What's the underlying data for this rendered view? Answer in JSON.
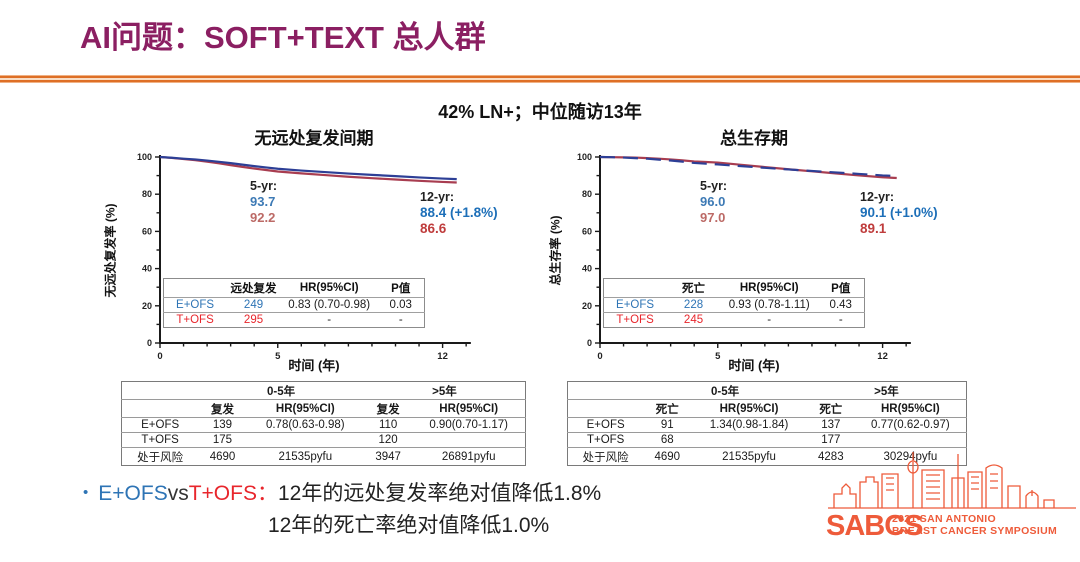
{
  "slide": {
    "title": "AI问题：SOFT+TEXT 总人群",
    "subtitle": "42% LN+；中位随访13年"
  },
  "colors": {
    "title": "#8b1f62",
    "divider_orange": "#de6f26",
    "series_blue_line": "#2d3f96",
    "series_red_line": "#a83d50",
    "text_blue": "#2e74b5",
    "text_red_bright": "#e8262c",
    "text_red_muted": "#bc6a66",
    "logo_orange": "#ee5b3a"
  },
  "chart_data": [
    {
      "type": "line",
      "id": "distant-recurrence-free-interval",
      "title": "无远处复发间期",
      "ylabel": "无远处复发率 (%)",
      "xlabel": "时间 (年)",
      "xticks": [
        0,
        5,
        12
      ],
      "yticks": [
        100,
        80,
        60,
        40,
        20,
        0
      ],
      "xrange": [
        0,
        13.2
      ],
      "yrange": [
        0,
        100
      ],
      "legend": "none",
      "grid": false,
      "series": [
        {
          "name": "E+OFS",
          "color": "#2d3f96",
          "points": [
            [
              0,
              100
            ],
            [
              0.5,
              99.6
            ],
            [
              1,
              99.1
            ],
            [
              1.5,
              98.7
            ],
            [
              2,
              98.1
            ],
            [
              2.5,
              97.4
            ],
            [
              3,
              96.7
            ],
            [
              3.5,
              95.9
            ],
            [
              4,
              95.1
            ],
            [
              4.5,
              94.4
            ],
            [
              5,
              93.7
            ],
            [
              6,
              92.7
            ],
            [
              7,
              91.9
            ],
            [
              8,
              91.1
            ],
            [
              9,
              90.4
            ],
            [
              10,
              89.7
            ],
            [
              11,
              89.0
            ],
            [
              12,
              88.4
            ],
            [
              12.6,
              88.1
            ]
          ]
        },
        {
          "name": "T+OFS",
          "color": "#a83d50",
          "points": [
            [
              0,
              100
            ],
            [
              0.5,
              99.5
            ],
            [
              1,
              98.9
            ],
            [
              1.5,
              98.3
            ],
            [
              2,
              97.5
            ],
            [
              2.5,
              96.6
            ],
            [
              3,
              95.6
            ],
            [
              3.5,
              94.7
            ],
            [
              4,
              93.8
            ],
            [
              4.5,
              93.0
            ],
            [
              5,
              92.2
            ],
            [
              6,
              91.2
            ],
            [
              7,
              90.3
            ],
            [
              8,
              89.4
            ],
            [
              9,
              88.6
            ],
            [
              10,
              87.9
            ],
            [
              11,
              87.2
            ],
            [
              12,
              86.6
            ],
            [
              12.6,
              86.3
            ]
          ]
        }
      ],
      "annotations": {
        "five_label": "5-yr:",
        "five_e": "93.7",
        "five_t": "92.2",
        "twelve_label": "12-yr:",
        "twelve_e": "88.4  (+1.8%)",
        "twelve_t": "86.6"
      },
      "inner_table": {
        "headers": [
          "",
          "远处复发",
          "HR(95%CI)",
          "P值"
        ],
        "rows": [
          {
            "label": "E+OFS",
            "cells": [
              "249",
              "0.83 (0.70-0.98)",
              "0.03"
            ]
          },
          {
            "label": "T+OFS",
            "cells": [
              "295",
              "-",
              "-"
            ]
          }
        ]
      },
      "period_table": {
        "col_groups": [
          "0-5年",
          ">5年"
        ],
        "headers": [
          "复发",
          "HR(95%CI)",
          "复发",
          "HR(95%CI)"
        ],
        "rows": [
          {
            "label": "E+OFS",
            "cells": [
              "139",
              "0.78(0.63-0.98)",
              "110",
              "0.90(0.70-1.17)"
            ]
          },
          {
            "label": "T+OFS",
            "cells": [
              "175",
              "",
              "120",
              ""
            ]
          },
          {
            "label": "处于风险",
            "cells": [
              "4690",
              "21535pyfu",
              "3947",
              "26891pyfu"
            ]
          }
        ]
      }
    },
    {
      "type": "line",
      "id": "overall-survival",
      "title": "总生存期",
      "ylabel": "总生存率 (%)",
      "xlabel": "时间 (年)",
      "xticks": [
        0,
        5,
        12
      ],
      "yticks": [
        100,
        80,
        60,
        40,
        20,
        0
      ],
      "xrange": [
        0,
        13.2
      ],
      "yrange": [
        0,
        100
      ],
      "legend": "none",
      "grid": false,
      "series": [
        {
          "name": "E+OFS",
          "color": "#2d3f96",
          "points": [
            [
              0,
              100
            ],
            [
              0.5,
              99.9
            ],
            [
              1,
              99.7
            ],
            [
              1.5,
              99.4
            ],
            [
              2,
              99.1
            ],
            [
              2.5,
              98.6
            ],
            [
              3,
              98.1
            ],
            [
              3.5,
              97.5
            ],
            [
              4,
              96.8
            ],
            [
              4.5,
              96.4
            ],
            [
              5,
              96.0
            ],
            [
              6,
              95.1
            ],
            [
              7,
              94.2
            ],
            [
              8,
              93.3
            ],
            [
              9,
              92.5
            ],
            [
              10,
              91.7
            ],
            [
              11,
              90.9
            ],
            [
              12,
              90.1
            ],
            [
              12.6,
              89.8
            ]
          ]
        },
        {
          "name": "T+OFS",
          "color": "#a83d50",
          "points": [
            [
              0,
              100
            ],
            [
              0.5,
              99.9
            ],
            [
              1,
              99.8
            ],
            [
              1.5,
              99.7
            ],
            [
              2,
              99.4
            ],
            [
              2.5,
              99.1
            ],
            [
              3,
              98.7
            ],
            [
              3.5,
              98.2
            ],
            [
              4,
              97.6
            ],
            [
              4.5,
              97.3
            ],
            [
              5,
              97.0
            ],
            [
              6,
              95.8
            ],
            [
              7,
              94.6
            ],
            [
              8,
              93.4
            ],
            [
              9,
              92.3
            ],
            [
              10,
              91.2
            ],
            [
              11,
              90.1
            ],
            [
              12,
              89.1
            ],
            [
              12.6,
              88.7
            ]
          ]
        }
      ],
      "annotations": {
        "five_label": "5-yr:",
        "five_e": "96.0",
        "five_t": "97.0",
        "twelve_label": "12-yr:",
        "twelve_e": "90.1  (+1.0%)",
        "twelve_t": "89.1"
      },
      "inner_table": {
        "headers": [
          "",
          "死亡",
          "HR(95%CI)",
          "P值"
        ],
        "rows": [
          {
            "label": "E+OFS",
            "cells": [
              "228",
              "0.93 (0.78-1.11)",
              "0.43"
            ]
          },
          {
            "label": "T+OFS",
            "cells": [
              "245",
              "-",
              "-"
            ]
          }
        ]
      },
      "period_table": {
        "col_groups": [
          "0-5年",
          ">5年"
        ],
        "headers": [
          "死亡",
          "HR(95%CI)",
          "死亡",
          "HR(95%CI)"
        ],
        "rows": [
          {
            "label": "E+OFS",
            "cells": [
              "91",
              "1.34(0.98-1.84)",
              "137",
              "0.77(0.62-0.97)"
            ]
          },
          {
            "label": "T+OFS",
            "cells": [
              "68",
              "",
              "177",
              ""
            ]
          },
          {
            "label": "处于风险",
            "cells": [
              "4690",
              "21535pyfu",
              "4283",
              "30294pyfu"
            ]
          }
        ]
      }
    }
  ],
  "bullet": {
    "marker": "•",
    "e_label": "E+OFS",
    "vs": "vs",
    "t_label": "T+OFS",
    "colon": "：",
    "line1": "12年的远处复发率绝对值降低1.8%",
    "line2": "12年的死亡率绝对值降低1.0%"
  },
  "logo": {
    "acronym": "SABCS",
    "line1": "2021 SAN ANTONIO",
    "line2": "BREAST CANCER SYMPOSIUM"
  }
}
